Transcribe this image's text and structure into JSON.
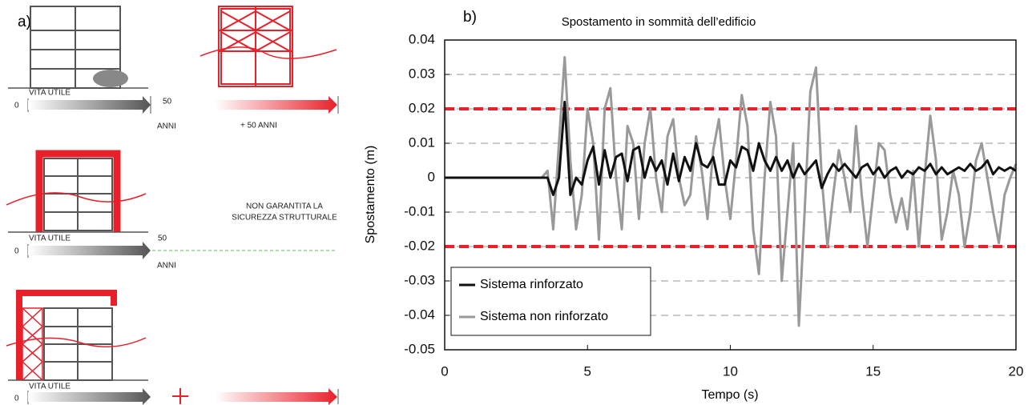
{
  "panel_a": {
    "label": "a)",
    "rows": [
      {
        "life_label": "VITA UTILE",
        "start": "0",
        "end": "50",
        "unit": "ANNI",
        "extension": "+ 50  ANNI"
      },
      {
        "life_label": "VITA UTILE",
        "start": "0",
        "end": "50",
        "unit": "ANNI",
        "note": [
          "NON GARANTITA LA",
          "SICUREZZA STRUTTURALE"
        ]
      },
      {
        "life_label": "VITA UTILE",
        "start": "0"
      }
    ]
  },
  "chart_data": {
    "type": "line",
    "panel_label": "b)",
    "title": "Spostamento in sommità dell’edificio",
    "x_label": "Tempo (s)",
    "y_label": "Spostamento (m)",
    "xlim": [
      0,
      20
    ],
    "xticks": [
      0,
      5,
      10,
      15,
      20
    ],
    "ylim": [
      -0.05,
      0.04
    ],
    "yticks": [
      -0.05,
      -0.04,
      -0.03,
      -0.02,
      -0.01,
      0,
      0.01,
      0.02,
      0.03,
      0.04
    ],
    "grid": true,
    "legend": "lower left",
    "reference_lines": [
      {
        "value": 0.02,
        "color": "#e8202a"
      },
      {
        "value": -0.02,
        "color": "#e8202a"
      }
    ],
    "x": [
      0,
      0.2,
      0.4,
      0.6,
      0.8,
      1,
      1.2,
      1.4,
      1.6,
      1.8,
      2,
      2.2,
      2.4,
      2.6,
      2.8,
      3,
      3.2,
      3.4,
      3.6,
      3.8,
      4,
      4.2,
      4.4,
      4.6,
      4.8,
      5,
      5.2,
      5.4,
      5.6,
      5.8,
      6,
      6.2,
      6.4,
      6.6,
      6.8,
      7,
      7.2,
      7.4,
      7.6,
      7.8,
      8,
      8.2,
      8.4,
      8.6,
      8.8,
      9,
      9.2,
      9.4,
      9.6,
      9.8,
      10,
      10.2,
      10.4,
      10.6,
      10.8,
      11,
      11.2,
      11.4,
      11.6,
      11.8,
      12,
      12.2,
      12.4,
      12.6,
      12.8,
      13,
      13.2,
      13.4,
      13.6,
      13.8,
      14,
      14.2,
      14.4,
      14.6,
      14.8,
      15,
      15.2,
      15.4,
      15.6,
      15.8,
      16,
      16.2,
      16.4,
      16.6,
      16.8,
      17,
      17.2,
      17.4,
      17.6,
      17.8,
      18,
      18.2,
      18.4,
      18.6,
      18.8,
      19,
      19.2,
      19.4,
      19.6,
      19.8,
      20
    ],
    "series": [
      {
        "name": "Sistema non rinforzato",
        "color": "#999999",
        "values": [
          0,
          0,
          0,
          0,
          0,
          0,
          0,
          0,
          0,
          0,
          0,
          0,
          0,
          0,
          0,
          0,
          0,
          0,
          0.002,
          -0.015,
          0.01,
          0.035,
          0.005,
          -0.015,
          -0.005,
          0.02,
          0.01,
          -0.018,
          0.02,
          0.026,
          0,
          -0.015,
          0.015,
          0.01,
          -0.012,
          0.01,
          0.02,
          0,
          -0.01,
          0.012,
          0.017,
          0,
          -0.008,
          -0.005,
          0.012,
          0.002,
          -0.012,
          0.008,
          0.017,
          0,
          -0.012,
          0.005,
          0.024,
          0.015,
          -0.015,
          -0.028,
          0,
          0.022,
          0.012,
          -0.03,
          -0.01,
          0.01,
          -0.043,
          -0.01,
          0.025,
          0.032,
          0,
          -0.02,
          -0.005,
          0.008,
          0,
          -0.01,
          0.015,
          -0.005,
          -0.02,
          -0.005,
          0.01,
          0.008,
          -0.005,
          -0.013,
          -0.006,
          -0.015,
          0.002,
          -0.02,
          0,
          0.018,
          0.005,
          -0.018,
          -0.01,
          0.002,
          -0.005,
          -0.02,
          -0.01,
          0.005,
          0.01,
          0,
          -0.01,
          -0.019,
          -0.005,
          0,
          0.004
        ]
      },
      {
        "name": "Sistema rinforzato",
        "color": "#111111",
        "values": [
          0,
          0,
          0,
          0,
          0,
          0,
          0,
          0,
          0,
          0,
          0,
          0,
          0,
          0,
          0,
          0,
          0,
          0,
          0,
          -0.005,
          0,
          0.022,
          -0.005,
          0,
          -0.002,
          0.005,
          0.009,
          -0.002,
          0.008,
          0,
          0.006,
          0.007,
          -0.001,
          0.008,
          0.009,
          0,
          0.006,
          0.002,
          0.005,
          -0.002,
          0.007,
          -0.001,
          0.006,
          0.002,
          0.01,
          0.004,
          0.003,
          0.006,
          -0.002,
          -0.002,
          0.005,
          0.003,
          0.009,
          0.008,
          0.002,
          0.01,
          0.005,
          0.002,
          0.006,
          0.002,
          0.005,
          0,
          0.004,
          0.001,
          0.003,
          0.005,
          -0.003,
          0.001,
          0.004,
          0.002,
          0.004,
          0.002,
          0,
          0.003,
          0.004,
          0.001,
          0.003,
          0,
          0.002,
          0.003,
          0,
          0.002,
          0.001,
          0.003,
          0.002,
          0.004,
          0.001,
          0.003,
          0.001,
          0.002,
          0.003,
          0.002,
          0.004,
          0.002,
          0.003,
          0.005,
          0.001,
          0.003,
          0.002,
          0.003,
          0.002
        ]
      }
    ]
  }
}
